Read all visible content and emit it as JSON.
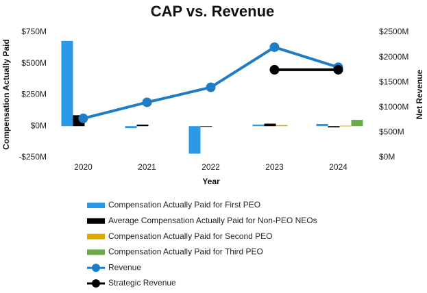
{
  "chart_data": {
    "type": "bar-line",
    "title": "CAP vs. Revenue",
    "x_label": "Year",
    "y_label": "Compensation Actually Paid",
    "y2_label": "Net Revenue",
    "categories": [
      "2020",
      "2021",
      "2022",
      "2023",
      "2024"
    ],
    "ylim": [
      -250,
      750
    ],
    "yticks": [
      {
        "value": -250,
        "label": "-$250M"
      },
      {
        "value": 0,
        "label": "$0M"
      },
      {
        "value": 250,
        "label": "$250M"
      },
      {
        "value": 500,
        "label": "$500M"
      },
      {
        "value": 750,
        "label": "$750M"
      }
    ],
    "y2lim": [
      0,
      2500
    ],
    "y2ticks": [
      {
        "value": 0,
        "label": "$0M"
      },
      {
        "value": 500,
        "label": "$500M"
      },
      {
        "value": 1000,
        "label": "$1000M"
      },
      {
        "value": 1500,
        "label": "$1500M"
      },
      {
        "value": 2000,
        "label": "$2000M"
      },
      {
        "value": 2500,
        "label": "$2500M"
      }
    ],
    "series": [
      {
        "name": "Compensation Actually Paid for First PEO",
        "type": "bar",
        "color": "#2b98e8",
        "values": [
          680,
          -16,
          -220,
          12,
          18
        ]
      },
      {
        "name": "Average Compensation Actually Paid for Non-PEO NEOs",
        "type": "bar",
        "color": "#000000",
        "values": [
          87,
          12,
          -5,
          20,
          -10
        ]
      },
      {
        "name": "Compensation Actually Paid for Second PEO",
        "type": "bar",
        "color": "#e0a800",
        "values": [
          null,
          null,
          null,
          8,
          4
        ]
      },
      {
        "name": "Compensation Actually Paid for Third PEO",
        "type": "bar",
        "color": "#6aac46",
        "values": [
          null,
          null,
          null,
          null,
          50
        ]
      },
      {
        "name": "Revenue",
        "type": "line",
        "axis": "y2",
        "color": "#1f7cc6",
        "values": [
          780,
          1100,
          1400,
          2200,
          1800
        ]
      },
      {
        "name": "Strategic Revenue",
        "type": "line",
        "axis": "y2",
        "color": "#000000",
        "values": [
          null,
          null,
          null,
          1750,
          1750
        ]
      }
    ]
  }
}
